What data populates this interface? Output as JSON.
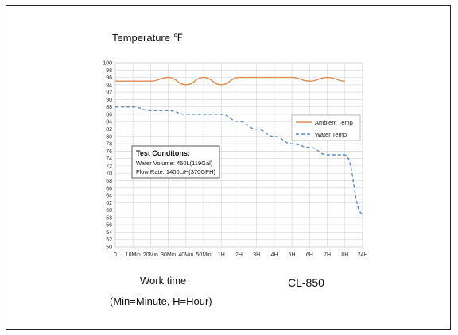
{
  "chart_data": {
    "type": "line",
    "title": "Temperature ℉",
    "xlabel": "Work time",
    "xlabel_note": "(Min=Minute, H=Hour)",
    "model": "CL-850",
    "categories": [
      "0",
      "10Min",
      "20Min",
      "30Min",
      "40Min",
      "50Min",
      "1H",
      "2H",
      "3H",
      "4H",
      "5H",
      "6H",
      "7H",
      "8H",
      "24H"
    ],
    "ylim": [
      50,
      100
    ],
    "ytick_step": 2,
    "grid": true,
    "legend_position": "top-right",
    "series": [
      {
        "name": "Ambient Temp",
        "color": "#e08a50",
        "style": "solid",
        "values": [
          95,
          95,
          95,
          96,
          94,
          96,
          94,
          96,
          96,
          96,
          96,
          95,
          96,
          95,
          null
        ]
      },
      {
        "name": "Water Temp",
        "color": "#5b8fc7",
        "style": "dashed",
        "values": [
          88,
          88,
          87,
          87,
          86,
          86,
          86,
          84,
          82,
          80,
          78,
          77,
          75,
          75,
          59
        ]
      }
    ],
    "annotation": {
      "title": "Test Conditons:",
      "lines": [
        "Water Volume: 450L(119Gal)",
        "Flow Rate: 1400L/H(370GPH)"
      ]
    }
  }
}
